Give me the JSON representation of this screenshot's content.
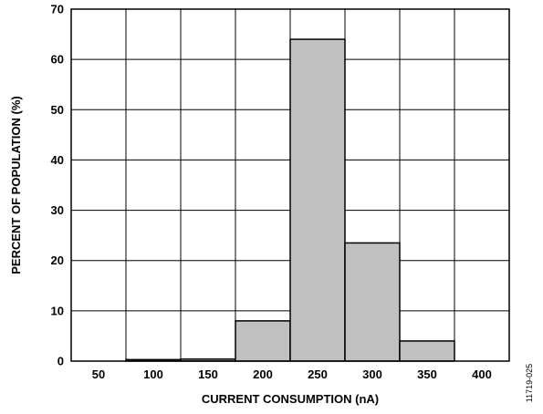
{
  "chart_data": {
    "type": "bar",
    "title": "",
    "xlabel": "CURRENT CONSUMPTION (nA)",
    "ylabel": "PERCENT OF POPULATION (%)",
    "x_ticks": [
      "50",
      "100",
      "150",
      "200",
      "250",
      "300",
      "350",
      "400"
    ],
    "y_ticks": [
      "0",
      "10",
      "20",
      "30",
      "40",
      "50",
      "60",
      "70"
    ],
    "ylim": [
      0,
      70
    ],
    "xlim": [
      25,
      425
    ],
    "grid": true,
    "legend": "none",
    "bar_color": "#c0c0c0",
    "bar_outline": "#000000",
    "bins": [
      {
        "x_start": 75,
        "x_end": 125,
        "value": 0.3
      },
      {
        "x_start": 125,
        "x_end": 175,
        "value": 0.4
      },
      {
        "x_start": 175,
        "x_end": 225,
        "value": 8
      },
      {
        "x_start": 225,
        "x_end": 275,
        "value": 64
      },
      {
        "x_start": 275,
        "x_end": 325,
        "value": 23.5
      },
      {
        "x_start": 325,
        "x_end": 375,
        "value": 4
      }
    ]
  },
  "figure_id": "11719-025"
}
